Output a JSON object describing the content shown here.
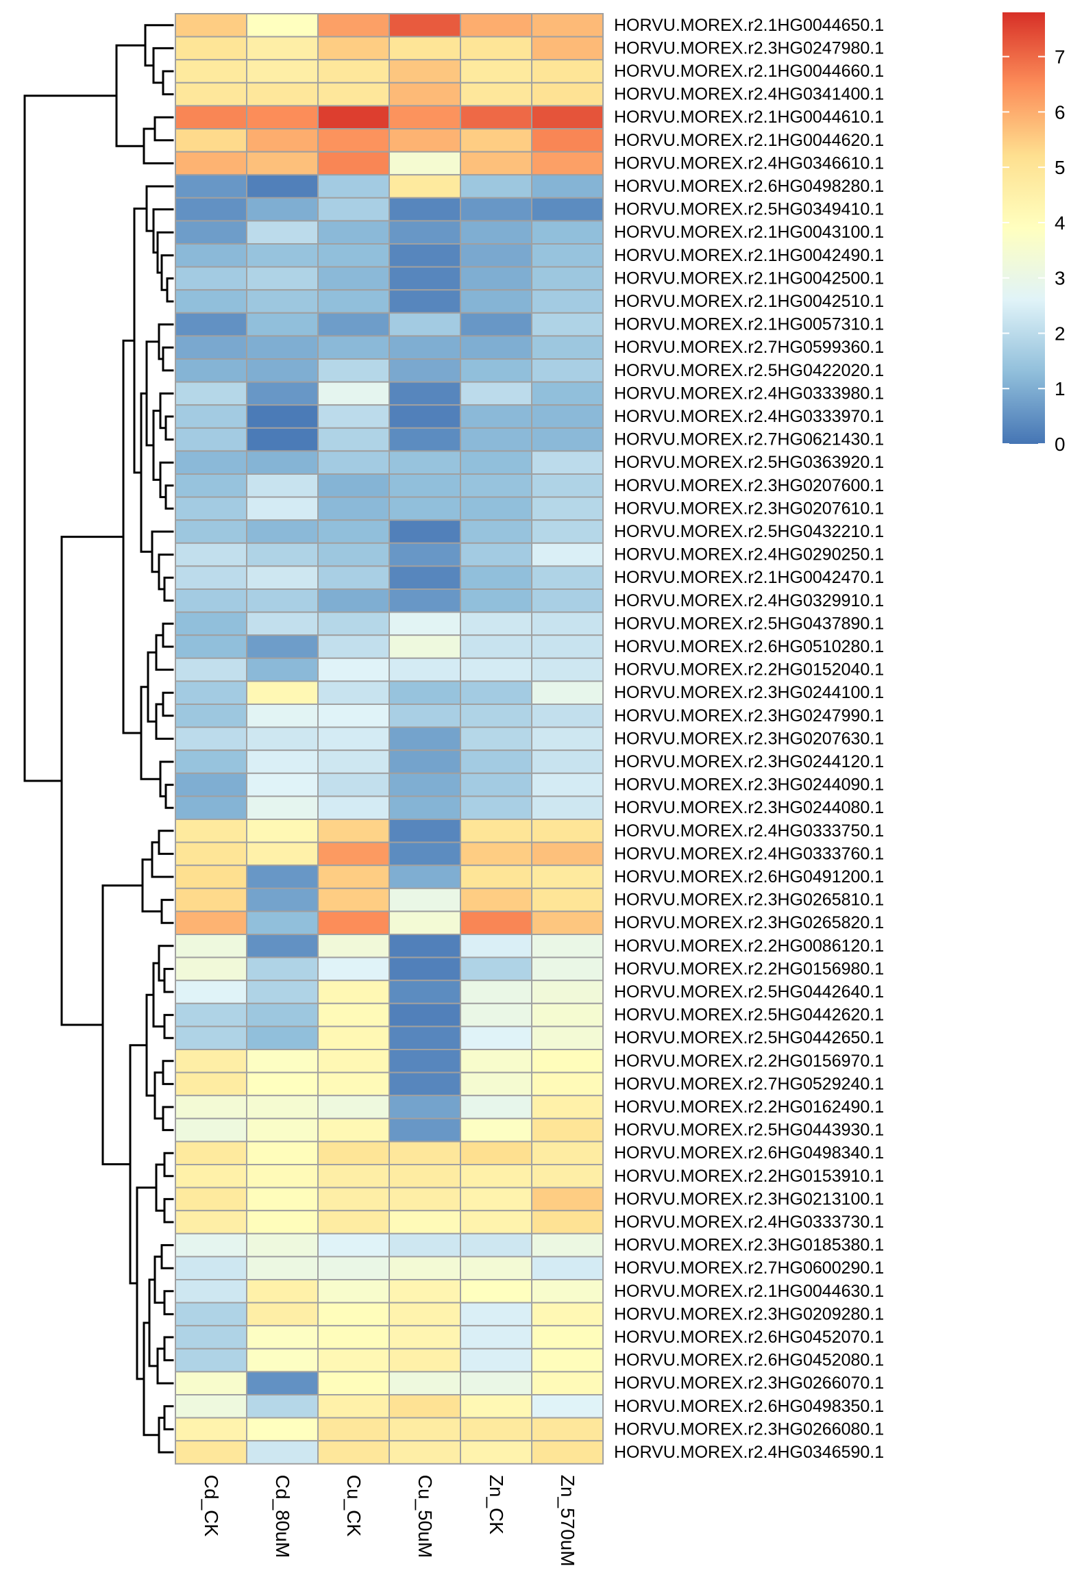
{
  "chart_data": {
    "type": "heatmap",
    "columns": [
      "Cd_CK",
      "Cd_80uM",
      "Cu_CK",
      "Cu_50uM",
      "Zn_CK",
      "Zn_570uM"
    ],
    "rows": [
      "HORVU.MOREX.r2.1HG0044650.1",
      "HORVU.MOREX.r2.3HG0247980.1",
      "HORVU.MOREX.r2.1HG0044660.1",
      "HORVU.MOREX.r2.4HG0341400.1",
      "HORVU.MOREX.r2.1HG0044610.1",
      "HORVU.MOREX.r2.1HG0044620.1",
      "HORVU.MOREX.r2.4HG0346610.1",
      "HORVU.MOREX.r2.6HG0498280.1",
      "HORVU.MOREX.r2.5HG0349410.1",
      "HORVU.MOREX.r2.1HG0043100.1",
      "HORVU.MOREX.r2.1HG0042490.1",
      "HORVU.MOREX.r2.1HG0042500.1",
      "HORVU.MOREX.r2.1HG0042510.1",
      "HORVU.MOREX.r2.1HG0057310.1",
      "HORVU.MOREX.r2.7HG0599360.1",
      "HORVU.MOREX.r2.5HG0422020.1",
      "HORVU.MOREX.r2.4HG0333980.1",
      "HORVU.MOREX.r2.4HG0333970.1",
      "HORVU.MOREX.r2.7HG0621430.1",
      "HORVU.MOREX.r2.5HG0363920.1",
      "HORVU.MOREX.r2.3HG0207600.1",
      "HORVU.MOREX.r2.3HG0207610.1",
      "HORVU.MOREX.r2.5HG0432210.1",
      "HORVU.MOREX.r2.4HG0290250.1",
      "HORVU.MOREX.r2.1HG0042470.1",
      "HORVU.MOREX.r2.4HG0329910.1",
      "HORVU.MOREX.r2.5HG0437890.1",
      "HORVU.MOREX.r2.6HG0510280.1",
      "HORVU.MOREX.r2.2HG0152040.1",
      "HORVU.MOREX.r2.3HG0244100.1",
      "HORVU.MOREX.r2.3HG0247990.1",
      "HORVU.MOREX.r2.3HG0207630.1",
      "HORVU.MOREX.r2.3HG0244120.1",
      "HORVU.MOREX.r2.3HG0244090.1",
      "HORVU.MOREX.r2.3HG0244080.1",
      "HORVU.MOREX.r2.4HG0333750.1",
      "HORVU.MOREX.r2.4HG0333760.1",
      "HORVU.MOREX.r2.6HG0491200.1",
      "HORVU.MOREX.r2.3HG0265810.1",
      "HORVU.MOREX.r2.3HG0265820.1",
      "HORVU.MOREX.r2.2HG0086120.1",
      "HORVU.MOREX.r2.2HG0156980.1",
      "HORVU.MOREX.r2.5HG0442640.1",
      "HORVU.MOREX.r2.5HG0442620.1",
      "HORVU.MOREX.r2.5HG0442650.1",
      "HORVU.MOREX.r2.2HG0156970.1",
      "HORVU.MOREX.r2.7HG0529240.1",
      "HORVU.MOREX.r2.2HG0162490.1",
      "HORVU.MOREX.r2.5HG0443930.1",
      "HORVU.MOREX.r2.6HG0498340.1",
      "HORVU.MOREX.r2.2HG0153910.1",
      "HORVU.MOREX.r2.3HG0213100.1",
      "HORVU.MOREX.r2.4HG0333730.1",
      "HORVU.MOREX.r2.3HG0185380.1",
      "HORVU.MOREX.r2.7HG0600290.1",
      "HORVU.MOREX.r2.1HG0044630.1",
      "HORVU.MOREX.r2.3HG0209280.1",
      "HORVU.MOREX.r2.6HG0452070.1",
      "HORVU.MOREX.r2.6HG0452080.1",
      "HORVU.MOREX.r2.3HG0266070.1",
      "HORVU.MOREX.r2.6HG0498350.1",
      "HORVU.MOREX.r2.3HG0266080.1",
      "HORVU.MOREX.r2.4HG0346590.1"
    ],
    "values": [
      [
        5.5,
        3.9,
        6.2,
        7.2,
        6.0,
        5.8
      ],
      [
        5.0,
        4.6,
        5.5,
        5.0,
        5.0,
        5.8
      ],
      [
        4.8,
        4.6,
        4.9,
        5.6,
        4.8,
        5.0
      ],
      [
        4.9,
        4.9,
        4.9,
        5.8,
        4.9,
        5.1
      ],
      [
        6.6,
        6.5,
        7.6,
        6.4,
        7.0,
        7.3
      ],
      [
        5.3,
        6.0,
        6.4,
        5.9,
        5.5,
        6.6
      ],
      [
        5.9,
        5.7,
        6.6,
        3.5,
        5.7,
        6.2
      ],
      [
        0.6,
        0.2,
        1.6,
        4.8,
        1.5,
        1.1
      ],
      [
        0.5,
        1.0,
        1.7,
        0.3,
        0.6,
        0.4
      ],
      [
        0.7,
        2.0,
        1.2,
        0.6,
        1.0,
        1.3
      ],
      [
        1.2,
        1.4,
        1.3,
        0.3,
        0.9,
        1.4
      ],
      [
        1.6,
        1.8,
        1.2,
        0.3,
        1.0,
        1.5
      ],
      [
        1.3,
        1.5,
        1.3,
        0.3,
        1.1,
        1.6
      ],
      [
        0.5,
        1.3,
        0.7,
        1.6,
        0.6,
        1.8
      ],
      [
        0.9,
        1.0,
        1.2,
        1.0,
        1.0,
        1.5
      ],
      [
        1.1,
        1.0,
        1.9,
        0.9,
        1.3,
        1.7
      ],
      [
        1.9,
        0.6,
        2.8,
        0.3,
        2.0,
        1.3
      ],
      [
        1.6,
        0.1,
        2.0,
        0.2,
        1.2,
        1.2
      ],
      [
        1.6,
        0.1,
        1.8,
        0.4,
        1.2,
        1.2
      ],
      [
        1.2,
        1.1,
        1.6,
        1.4,
        1.3,
        2.0
      ],
      [
        1.4,
        2.2,
        1.1,
        1.3,
        1.4,
        1.8
      ],
      [
        1.6,
        2.4,
        1.2,
        1.3,
        1.3,
        1.9
      ],
      [
        1.5,
        1.2,
        1.3,
        0.2,
        1.4,
        1.9
      ],
      [
        2.1,
        1.8,
        1.5,
        0.6,
        1.6,
        2.5
      ],
      [
        2.0,
        2.3,
        1.7,
        0.3,
        1.3,
        1.8
      ],
      [
        1.6,
        1.7,
        1.0,
        0.6,
        1.3,
        1.7
      ],
      [
        1.3,
        2.1,
        1.9,
        2.7,
        2.3,
        2.2
      ],
      [
        1.3,
        0.7,
        2.1,
        3.2,
        2.2,
        2.2
      ],
      [
        2.1,
        1.2,
        2.6,
        2.4,
        2.4,
        2.3
      ],
      [
        1.6,
        4.2,
        2.2,
        1.4,
        1.6,
        2.9
      ],
      [
        1.5,
        2.7,
        2.6,
        1.7,
        1.8,
        2.1
      ],
      [
        2.0,
        2.3,
        2.4,
        0.8,
        1.9,
        2.3
      ],
      [
        1.4,
        2.5,
        2.3,
        0.8,
        1.6,
        2.2
      ],
      [
        1.0,
        2.6,
        2.1,
        1.0,
        1.6,
        2.4
      ],
      [
        1.1,
        2.8,
        2.4,
        1.1,
        1.7,
        2.3
      ],
      [
        4.8,
        4.2,
        5.4,
        0.3,
        5.0,
        5.0
      ],
      [
        5.0,
        4.5,
        6.3,
        0.4,
        5.5,
        5.7
      ],
      [
        5.2,
        0.6,
        5.5,
        1.0,
        5.0,
        4.8
      ],
      [
        5.3,
        0.8,
        5.5,
        3.0,
        5.5,
        5.0
      ],
      [
        5.9,
        1.3,
        6.5,
        3.4,
        6.6,
        5.6
      ],
      [
        3.2,
        0.5,
        3.3,
        0.2,
        2.5,
        3.0
      ],
      [
        3.3,
        1.8,
        2.6,
        0.2,
        1.8,
        3.0
      ],
      [
        2.6,
        1.8,
        4.2,
        0.4,
        3.0,
        3.3
      ],
      [
        1.8,
        1.5,
        4.1,
        0.2,
        3.0,
        3.5
      ],
      [
        1.8,
        1.3,
        4.2,
        0.3,
        2.6,
        3.4
      ],
      [
        4.6,
        3.8,
        4.2,
        0.3,
        3.6,
        4.0
      ],
      [
        4.7,
        3.9,
        4.1,
        0.3,
        3.5,
        4.1
      ],
      [
        3.4,
        3.5,
        3.2,
        0.8,
        2.9,
        4.5
      ],
      [
        3.2,
        3.7,
        4.2,
        0.6,
        3.8,
        5.0
      ],
      [
        4.8,
        4.0,
        5.0,
        4.9,
        5.2,
        4.7
      ],
      [
        4.5,
        4.1,
        4.6,
        4.7,
        4.5,
        4.6
      ],
      [
        4.8,
        4.0,
        4.6,
        4.6,
        4.4,
        5.5
      ],
      [
        4.6,
        4.0,
        4.7,
        4.1,
        4.4,
        5.1
      ],
      [
        2.8,
        3.2,
        2.6,
        2.3,
        2.3,
        3.1
      ],
      [
        2.3,
        3.1,
        3.0,
        3.4,
        3.4,
        2.4
      ],
      [
        2.3,
        4.5,
        3.6,
        4.3,
        3.9,
        3.6
      ],
      [
        1.8,
        4.6,
        4.0,
        4.4,
        2.5,
        4.2
      ],
      [
        1.8,
        3.8,
        4.0,
        4.3,
        2.5,
        4.0
      ],
      [
        1.8,
        3.8,
        4.2,
        4.5,
        2.5,
        4.0
      ],
      [
        3.6,
        0.5,
        4.0,
        3.2,
        3.0,
        4.1
      ],
      [
        3.2,
        1.9,
        4.5,
        5.1,
        4.2,
        2.6
      ],
      [
        4.4,
        3.9,
        4.9,
        4.7,
        4.8,
        4.9
      ],
      [
        4.9,
        2.3,
        4.9,
        4.6,
        4.4,
        5.0
      ]
    ],
    "colorbar": {
      "min": 0,
      "max": 7.8,
      "ticks": [
        0,
        1,
        2,
        3,
        4,
        5,
        6,
        7
      ],
      "stops": [
        "#4575B4",
        "#91BFDB",
        "#E0F3F8",
        "#FFFFBF",
        "#FEE090",
        "#FC8D59",
        "#D73027"
      ]
    },
    "row_dendrogram": "shown on left",
    "grid_color": "#A0A0A0"
  }
}
